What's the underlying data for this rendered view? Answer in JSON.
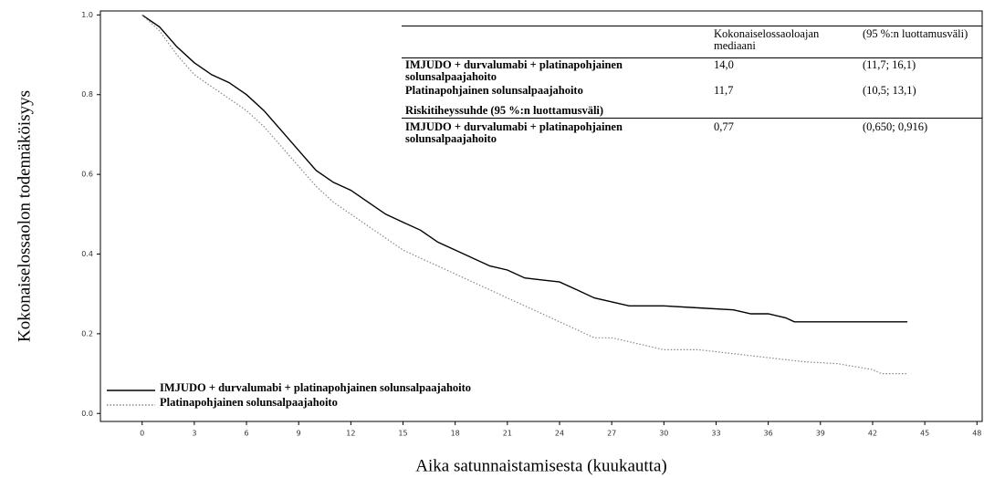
{
  "chart_data": {
    "type": "line",
    "y_label": "Kokonaiselossaolon todennäköisyys",
    "x_label": "Aika satunnaistamisesta (kuukautta)",
    "xlim": [
      -2.4,
      48.3
    ],
    "ylim": [
      -0.02,
      1.01
    ],
    "xticks": [
      0,
      3,
      6,
      9,
      12,
      15,
      18,
      21,
      24,
      27,
      30,
      33,
      36,
      39,
      42,
      45,
      48
    ],
    "yticks": [
      {
        "value": 0,
        "label": "0.0"
      },
      {
        "value": 0.2,
        "label": "0.2"
      },
      {
        "value": 0.4,
        "label": "0.4"
      },
      {
        "value": 0.6,
        "label": "0.6"
      },
      {
        "value": 0.8,
        "label": "0.8"
      },
      {
        "value": 1,
        "label": "1.0"
      }
    ],
    "legend": "bottom-left",
    "series": [
      {
        "name": "IMJUDO + durvalumabi + platinapohjainen solunsalpaajahoito",
        "color": "#000000",
        "dash": "none",
        "x": [
          0,
          1,
          2,
          3,
          4,
          5,
          6,
          7,
          8,
          9,
          10,
          11,
          12,
          13,
          14,
          15,
          16,
          17,
          18,
          19,
          20,
          21,
          22,
          23,
          24,
          25,
          26,
          27,
          28,
          30,
          32,
          34,
          35,
          36,
          37,
          37.5,
          44
        ],
        "values": [
          1.0,
          0.97,
          0.92,
          0.88,
          0.85,
          0.83,
          0.8,
          0.76,
          0.71,
          0.66,
          0.61,
          0.58,
          0.56,
          0.53,
          0.5,
          0.48,
          0.46,
          0.43,
          0.41,
          0.39,
          0.37,
          0.36,
          0.34,
          0.335,
          0.33,
          0.31,
          0.29,
          0.28,
          0.27,
          0.27,
          0.265,
          0.26,
          0.25,
          0.25,
          0.24,
          0.23,
          0.23
        ]
      },
      {
        "name": "Platinapohjainen solunsalpaajahoito",
        "color": "#888888",
        "dash": "1.5,2",
        "x": [
          0,
          1,
          2,
          3,
          4,
          5,
          6,
          7,
          8,
          9,
          10,
          11,
          12,
          13,
          14,
          15,
          16,
          17,
          18,
          19,
          20,
          21,
          22,
          23,
          24,
          25,
          26,
          27,
          28,
          29,
          30,
          32,
          34,
          36,
          38,
          40,
          42,
          42.5,
          44
        ],
        "values": [
          1.0,
          0.96,
          0.9,
          0.85,
          0.82,
          0.79,
          0.76,
          0.72,
          0.67,
          0.62,
          0.57,
          0.53,
          0.5,
          0.47,
          0.44,
          0.41,
          0.39,
          0.37,
          0.35,
          0.33,
          0.31,
          0.29,
          0.27,
          0.25,
          0.23,
          0.21,
          0.19,
          0.19,
          0.18,
          0.17,
          0.16,
          0.16,
          0.15,
          0.14,
          0.13,
          0.125,
          0.11,
          0.1,
          0.1
        ]
      }
    ],
    "table": {
      "header": [
        "Kokonaiselossaoloajan mediaani",
        "(95 %:n luottamusväli)"
      ],
      "rows": [
        [
          "IMJUDO + durvalumabi + platinapohjainen solunsalpaajahoito",
          "14,0",
          "(11,7; 16,1)"
        ],
        [
          "Platinapohjainen solunsalpaajahoito",
          "11,7",
          "(10,5; 13,1)"
        ],
        [
          "Riskitiheyssuhde (95 %:n luottamusväli)"
        ],
        [
          "IMJUDO + durvalumabi + platinapohjainen solunsalpaajahoito",
          "0,77",
          "(0,650; 0,916)"
        ]
      ]
    }
  }
}
